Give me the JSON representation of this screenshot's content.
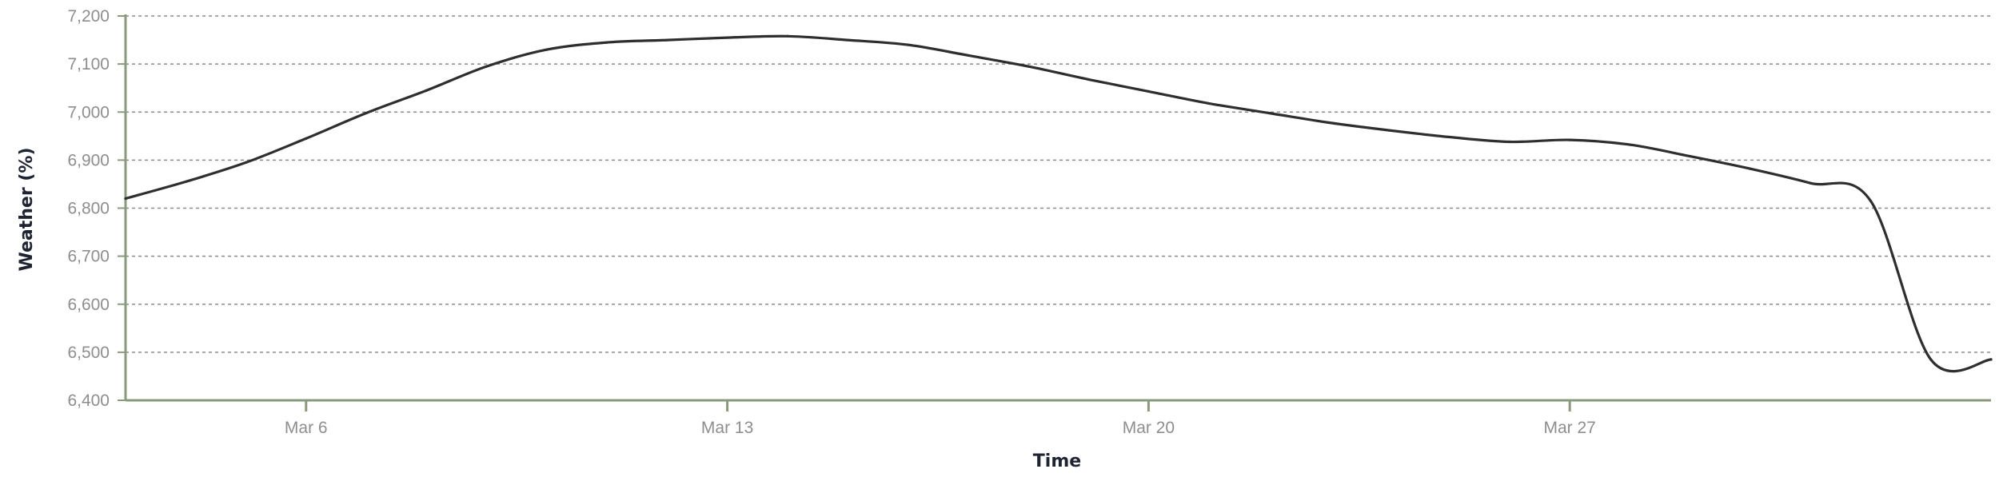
{
  "chart_data": {
    "type": "line",
    "title": "",
    "xlabel": "Time",
    "ylabel": "Weather (%)",
    "x_range": [
      "2024-03-03",
      "2024-04-03"
    ],
    "ylim": [
      6400,
      7200
    ],
    "y_ticks": [
      6400,
      6500,
      6600,
      6700,
      6800,
      6900,
      7000,
      7100,
      7200
    ],
    "y_tick_labels": [
      "6,400",
      "6,500",
      "6,600",
      "6,700",
      "6,800",
      "6,900",
      "7,000",
      "7,100",
      "7,200"
    ],
    "x_ticks": [
      "2024-03-06",
      "2024-03-13",
      "2024-03-20",
      "2024-03-27"
    ],
    "x_tick_labels": [
      "Mar 6",
      "Mar 13",
      "Mar 20",
      "Mar 27"
    ],
    "grid": "horizontal dashed",
    "colors": {
      "line": "#2e2e2e",
      "axis": "#8a9a7c",
      "grid": "#8a8a8a"
    },
    "series": [
      {
        "x": [
          "2024-03-03",
          "2024-03-04",
          "2024-03-05",
          "2024-03-06",
          "2024-03-07",
          "2024-03-08",
          "2024-03-09",
          "2024-03-10",
          "2024-03-11",
          "2024-03-12",
          "2024-03-13",
          "2024-03-14",
          "2024-03-15",
          "2024-03-16",
          "2024-03-17",
          "2024-03-18",
          "2024-03-19",
          "2024-03-20",
          "2024-03-21",
          "2024-03-22",
          "2024-03-23",
          "2024-03-24",
          "2024-03-25",
          "2024-03-26",
          "2024-03-27",
          "2024-03-28",
          "2024-03-29",
          "2024-03-30",
          "2024-03-31",
          "2024-04-01",
          "2024-04-02",
          "2024-04-03"
        ],
        "values": [
          6820,
          6855,
          6895,
          6945,
          6998,
          7045,
          7095,
          7130,
          7145,
          7150,
          7155,
          7158,
          7150,
          7140,
          7118,
          7095,
          7068,
          7043,
          7018,
          6998,
          6978,
          6962,
          6948,
          6938,
          6942,
          6932,
          6908,
          6882,
          6852,
          6815,
          6485,
          6485
        ]
      }
    ]
  }
}
